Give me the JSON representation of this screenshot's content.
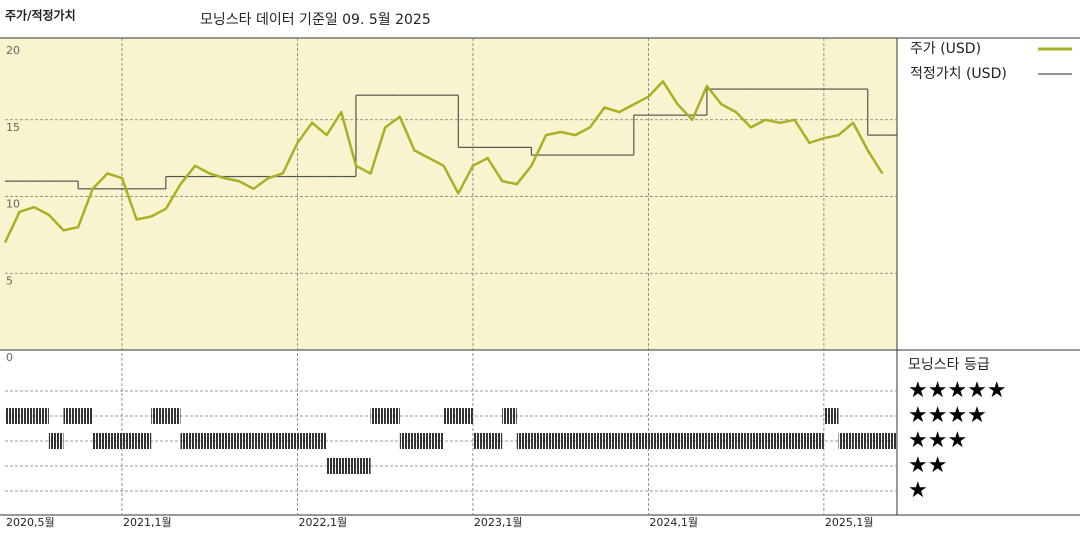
{
  "chart_data": {
    "type": "line",
    "title": "주가/적정가치",
    "subtitle": "모닝스타 데이터 기준일 09. 5월 2025",
    "x": [
      "2020-05",
      "2020-06",
      "2020-07",
      "2020-08",
      "2020-09",
      "2020-10",
      "2020-11",
      "2020-12",
      "2021-01",
      "2021-02",
      "2021-03",
      "2021-04",
      "2021-05",
      "2021-06",
      "2021-07",
      "2021-08",
      "2021-09",
      "2021-10",
      "2021-11",
      "2021-12",
      "2022-01",
      "2022-02",
      "2022-03",
      "2022-04",
      "2022-05",
      "2022-06",
      "2022-07",
      "2022-08",
      "2022-09",
      "2022-10",
      "2022-11",
      "2022-12",
      "2023-01",
      "2023-02",
      "2023-03",
      "2023-04",
      "2023-05",
      "2023-06",
      "2023-07",
      "2023-08",
      "2023-09",
      "2023-10",
      "2023-11",
      "2023-12",
      "2024-01",
      "2024-02",
      "2024-03",
      "2024-04",
      "2024-05",
      "2024-06",
      "2024-07",
      "2024-08",
      "2024-09",
      "2024-10",
      "2024-11",
      "2024-12",
      "2025-01",
      "2025-02",
      "2025-03",
      "2025-04",
      "2025-05"
    ],
    "xlim": [
      "2020-05",
      "2025-06"
    ],
    "xticks": [
      {
        "value": "2020-05",
        "label": "2020,5월"
      },
      {
        "value": "2021-01",
        "label": "2021,1월"
      },
      {
        "value": "2022-01",
        "label": "2022,1월"
      },
      {
        "value": "2023-01",
        "label": "2023,1월"
      },
      {
        "value": "2024-01",
        "label": "2024,1월"
      },
      {
        "value": "2025-01",
        "label": "2025,1월"
      }
    ],
    "ylim": [
      0,
      20
    ],
    "yticks": [
      0,
      5,
      10,
      15,
      20
    ],
    "grid": true,
    "series": [
      {
        "name": "주가 (USD)",
        "color": "#a9b025",
        "values": [
          7.0,
          9.0,
          9.3,
          8.8,
          7.8,
          8.0,
          10.5,
          11.5,
          11.2,
          8.5,
          8.7,
          9.2,
          10.8,
          12.0,
          11.5,
          11.2,
          11.0,
          10.5,
          11.2,
          11.5,
          13.5,
          14.8,
          14.0,
          15.5,
          12.0,
          11.5,
          14.5,
          15.2,
          13.0,
          12.5,
          12.0,
          10.2,
          12.0,
          12.5,
          11.0,
          10.8,
          12.0,
          14.0,
          14.2,
          14.0,
          14.5,
          15.8,
          15.5,
          16.0,
          16.5,
          17.5,
          16.0,
          15.0,
          17.2,
          16.0,
          15.5,
          14.5,
          15.0,
          14.8,
          15.0,
          13.5,
          13.8,
          14.0,
          14.8,
          13.0,
          11.5
        ]
      },
      {
        "name": "적정가치 (USD)",
        "color": "#555555",
        "values": [
          11.0,
          11.0,
          11.0,
          11.0,
          11.0,
          10.5,
          10.5,
          10.5,
          10.5,
          10.5,
          10.5,
          11.3,
          11.3,
          11.3,
          11.3,
          11.3,
          11.3,
          11.3,
          11.3,
          11.3,
          11.3,
          11.3,
          11.3,
          11.3,
          16.6,
          16.6,
          16.6,
          16.6,
          16.6,
          16.6,
          16.6,
          13.2,
          13.2,
          13.2,
          13.2,
          13.2,
          12.7,
          12.7,
          12.7,
          12.7,
          12.7,
          12.7,
          12.7,
          15.3,
          15.3,
          15.3,
          15.3,
          15.3,
          17.0,
          17.0,
          17.0,
          17.0,
          17.0,
          17.0,
          17.0,
          17.0,
          17.0,
          17.0,
          17.0,
          14.0,
          14.0
        ]
      }
    ],
    "ratings": {
      "title": "모닝스타 등급",
      "color": "#333333",
      "levels": [
        5,
        4,
        3,
        2,
        1
      ],
      "labels": [
        "★★★★★",
        "★★★★",
        "★★★",
        "★★",
        "★"
      ],
      "values": [
        4,
        4,
        4,
        3,
        4,
        4,
        3,
        3,
        3,
        3,
        4,
        4,
        3,
        3,
        3,
        3,
        3,
        3,
        3,
        3,
        3,
        3,
        2,
        2,
        2,
        4,
        4,
        3,
        3,
        3,
        4,
        4,
        3,
        3,
        4,
        3,
        3,
        3,
        3,
        3,
        3,
        3,
        3,
        3,
        3,
        3,
        3,
        3,
        3,
        3,
        3,
        3,
        3,
        3,
        3,
        3,
        4,
        3,
        3,
        3,
        3
      ]
    }
  }
}
